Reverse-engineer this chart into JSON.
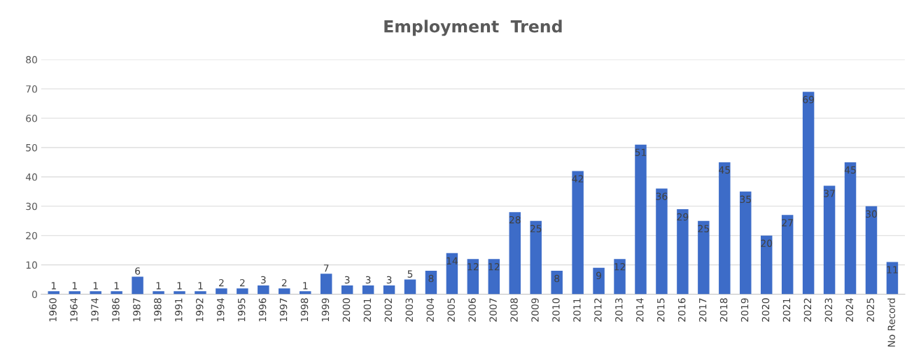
{
  "chart_data": {
    "type": "bar",
    "title": "Employment  Trend",
    "categories": [
      "1960",
      "1964",
      "1974",
      "1986",
      "1987",
      "1988",
      "1991",
      "1992",
      "1994",
      "1995",
      "1996",
      "1997",
      "1998",
      "1999",
      "2000",
      "2001",
      "2002",
      "2003",
      "2004",
      "2005",
      "2006",
      "2007",
      "2008",
      "2009",
      "2010",
      "2011",
      "2012",
      "2013",
      "2014",
      "2015",
      "2016",
      "2017",
      "2018",
      "2019",
      "2020",
      "2021",
      "2022",
      "2023",
      "2024",
      "2025",
      "No Record"
    ],
    "values": [
      1,
      1,
      1,
      1,
      6,
      1,
      1,
      1,
      2,
      2,
      3,
      2,
      1,
      7,
      3,
      3,
      3,
      5,
      8,
      14,
      12,
      12,
      28,
      25,
      8,
      42,
      9,
      12,
      51,
      36,
      29,
      25,
      45,
      35,
      20,
      27,
      69,
      37,
      45,
      30,
      11
    ],
    "color": "#3d6cc8",
    "ylim": [
      0,
      80
    ],
    "yticks": [
      0,
      10,
      20,
      30,
      40,
      50,
      60,
      70,
      80
    ],
    "grid": "y",
    "data_labels": true
  }
}
